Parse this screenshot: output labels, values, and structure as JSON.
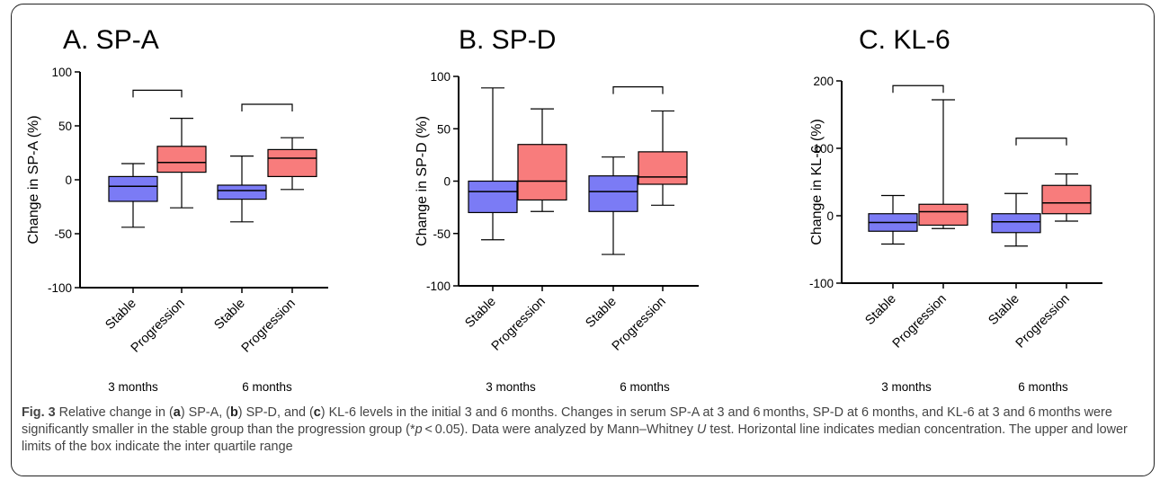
{
  "colors": {
    "stable": "#7b7bf5",
    "progression": "#f87c7c",
    "axis": "#000000"
  },
  "chart_data": [
    {
      "type": "box",
      "title": "A. SP-A",
      "ylabel": "Change in SP-A (%)",
      "ylim": [
        -100,
        100
      ],
      "yticks": [
        "100",
        "50",
        "0",
        "-50",
        "-100"
      ],
      "yticks_values": [
        100,
        50,
        0,
        -50,
        -100
      ],
      "categories": [
        "Stable",
        "Progression",
        "Stable",
        "Progression"
      ],
      "groups": [
        "3 months",
        "6 months"
      ],
      "boxes": [
        {
          "group": "3 months",
          "series": "Stable",
          "min": -44,
          "q1": -20,
          "median": -6,
          "q3": 3,
          "max": 15
        },
        {
          "group": "3 months",
          "series": "Progression",
          "min": -26,
          "q1": 7,
          "median": 16,
          "q3": 31,
          "max": 57
        },
        {
          "group": "6 months",
          "series": "Stable",
          "min": -39,
          "q1": -18,
          "median": -10,
          "q3": -5,
          "max": 22
        },
        {
          "group": "6 months",
          "series": "Progression",
          "min": -9,
          "q1": 3,
          "median": 20,
          "q3": 28,
          "max": 39
        }
      ],
      "significance": [
        {
          "pair": [
            0,
            1
          ],
          "y": 83
        },
        {
          "pair": [
            2,
            3
          ],
          "y": 70
        }
      ]
    },
    {
      "type": "box",
      "title": "B. SP-D",
      "ylabel": "Change in SP-D (%)",
      "ylim": [
        -100,
        100
      ],
      "yticks": [
        "100",
        "50",
        "0",
        "-50",
        "-100"
      ],
      "yticks_values": [
        100,
        50,
        0,
        -50,
        -100
      ],
      "categories": [
        "Stable",
        "Progression",
        "Stable",
        "Progression"
      ],
      "groups": [
        "3 months",
        "6 months"
      ],
      "boxes": [
        {
          "group": "3 months",
          "series": "Stable",
          "min": -56,
          "q1": -30,
          "median": -10,
          "q3": 0,
          "max": 89
        },
        {
          "group": "3 months",
          "series": "Progression",
          "min": -29,
          "q1": -18,
          "median": 0,
          "q3": 35,
          "max": 69
        },
        {
          "group": "6 months",
          "series": "Stable",
          "min": -70,
          "q1": -29,
          "median": -10,
          "q3": 5,
          "max": 23
        },
        {
          "group": "6 months",
          "series": "Progression",
          "min": -23,
          "q1": -3,
          "median": 4,
          "q3": 28,
          "max": 67
        }
      ],
      "significance": [
        {
          "pair": [
            2,
            3
          ],
          "y": 90
        }
      ]
    },
    {
      "type": "box",
      "title": "C. KL-6",
      "ylabel": "Change in KL-6 (%)",
      "ylim": [
        -100,
        200
      ],
      "yticks": [
        "200",
        "100",
        "0",
        "-100"
      ],
      "yticks_values": [
        200,
        100,
        0,
        -100
      ],
      "categories": [
        "Stable",
        "Progression",
        "Stable",
        "Progression"
      ],
      "groups": [
        "3 months",
        "6 months"
      ],
      "boxes": [
        {
          "group": "3 months",
          "series": "Stable",
          "min": -42,
          "q1": -23,
          "median": -10,
          "q3": 3,
          "max": 30
        },
        {
          "group": "3 months",
          "series": "Progression",
          "min": -19,
          "q1": -14,
          "median": 6,
          "q3": 17,
          "max": 172
        },
        {
          "group": "6 months",
          "series": "Stable",
          "min": -45,
          "q1": -25,
          "median": -9,
          "q3": 3,
          "max": 33
        },
        {
          "group": "6 months",
          "series": "Progression",
          "min": -8,
          "q1": 3,
          "median": 19,
          "q3": 45,
          "max": 62
        }
      ],
      "significance": [
        {
          "pair": [
            0,
            1
          ],
          "y": 193
        },
        {
          "pair": [
            2,
            3
          ],
          "y": 115
        }
      ]
    }
  ],
  "caption": {
    "fig_label": "Fig. 3",
    "parts": [
      " Relative change in (",
      "a",
      ") SP-A, (",
      "b",
      ") SP-D, and (",
      "c",
      ") KL-6 levels in the initial 3 and 6 months. Changes in serum SP-A at 3 and 6 months, SP-D at 6 months, and KL-6 at 3 and 6 months were significantly smaller in the stable group than the progression group (*",
      "p",
      " < 0.05). Data were analyzed by Mann–Whitney ",
      "U",
      " test. Horizontal line indicates median concentration. The upper and lower limits of the box indicate the inter quartile range"
    ]
  }
}
